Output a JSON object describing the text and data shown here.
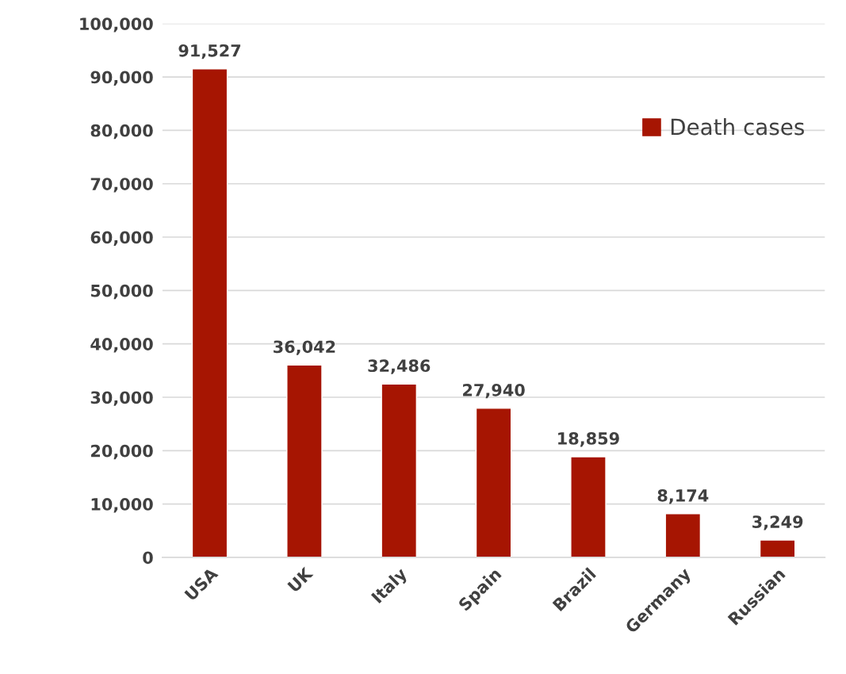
{
  "chart_data": {
    "type": "bar",
    "categories": [
      "USA",
      "UK",
      "Italy",
      "Spain",
      "Brazil",
      "Germany",
      "Russian"
    ],
    "series": [
      {
        "name": "Death cases",
        "color": "#a61502",
        "values": [
          91527,
          36042,
          32486,
          27940,
          18859,
          8174,
          3249
        ],
        "value_labels": [
          "91,527",
          "36,042",
          "32,486",
          "27,940",
          "18,859",
          "8,174",
          "3,249"
        ]
      }
    ],
    "ylim": [
      0,
      100000
    ],
    "yticks": [
      {
        "value": 0,
        "label": "0"
      },
      {
        "value": 10000,
        "label": "10,000"
      },
      {
        "value": 20000,
        "label": "20,000"
      },
      {
        "value": 30000,
        "label": "30,000"
      },
      {
        "value": 40000,
        "label": "40,000"
      },
      {
        "value": 50000,
        "label": "50,000"
      },
      {
        "value": 60000,
        "label": "60,000"
      },
      {
        "value": 70000,
        "label": "70,000"
      },
      {
        "value": 80000,
        "label": "80,000"
      },
      {
        "value": 90000,
        "label": "90,000"
      },
      {
        "value": 100000,
        "label": "100,000"
      }
    ],
    "grid": "y",
    "legend": "top right"
  }
}
